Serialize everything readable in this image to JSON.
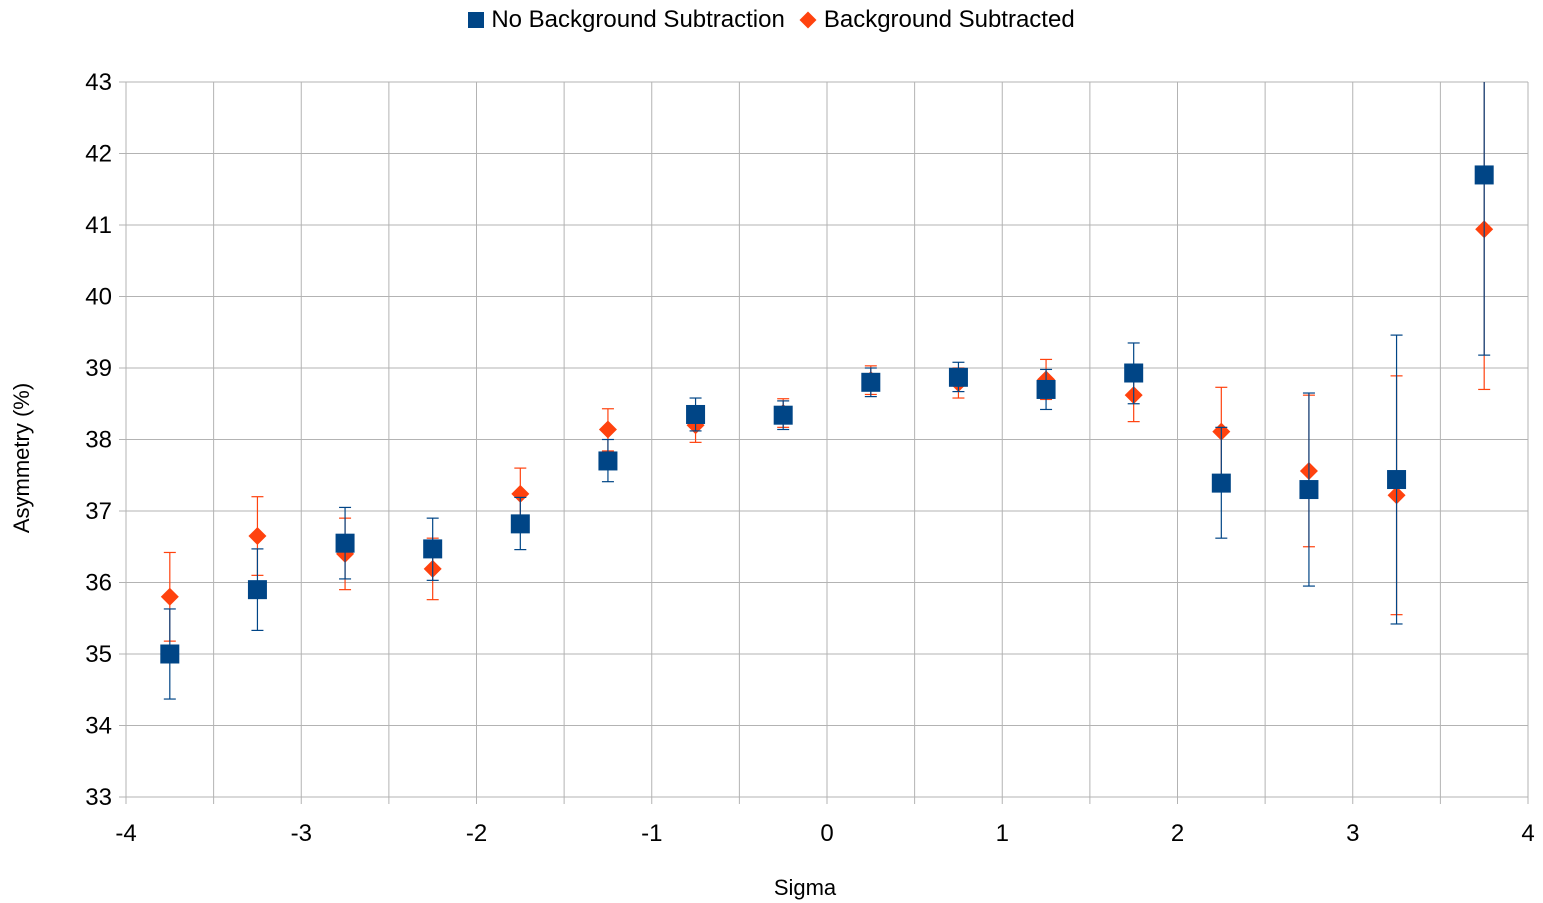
{
  "chart_data": {
    "type": "scatter",
    "title": "",
    "xlabel": "Sigma",
    "ylabel": "Asymmetry (%)",
    "xlim": [
      -4,
      4
    ],
    "ylim": [
      33,
      43
    ],
    "x_major_ticks": [
      -4,
      -3,
      -2,
      -1,
      0,
      1,
      2,
      3,
      4
    ],
    "x_grid_step": 0.5,
    "y_ticks": [
      33,
      34,
      35,
      36,
      37,
      38,
      39,
      40,
      41,
      42,
      43
    ],
    "grid": true,
    "legend_position": "top",
    "series": [
      {
        "name": "No Background Subtraction",
        "marker": "square",
        "color": "#004586",
        "points": [
          {
            "x": -3.75,
            "y": 35.0,
            "lo": 34.37,
            "hi": 35.63
          },
          {
            "x": -3.25,
            "y": 35.9,
            "lo": 35.33,
            "hi": 36.47
          },
          {
            "x": -2.75,
            "y": 36.55,
            "lo": 36.05,
            "hi": 37.05
          },
          {
            "x": -2.25,
            "y": 36.47,
            "lo": 36.03,
            "hi": 36.9
          },
          {
            "x": -1.75,
            "y": 36.82,
            "lo": 36.46,
            "hi": 37.19
          },
          {
            "x": -1.25,
            "y": 37.7,
            "lo": 37.41,
            "hi": 38.0
          },
          {
            "x": -0.75,
            "y": 38.35,
            "lo": 38.12,
            "hi": 38.58
          },
          {
            "x": -0.25,
            "y": 38.34,
            "lo": 38.14,
            "hi": 38.54
          },
          {
            "x": 0.25,
            "y": 38.8,
            "lo": 38.6,
            "hi": 39.0
          },
          {
            "x": 0.75,
            "y": 38.87,
            "lo": 38.67,
            "hi": 39.08
          },
          {
            "x": 1.25,
            "y": 38.7,
            "lo": 38.42,
            "hi": 38.98
          },
          {
            "x": 1.75,
            "y": 38.93,
            "lo": 38.5,
            "hi": 39.35
          },
          {
            "x": 2.25,
            "y": 37.39,
            "lo": 36.62,
            "hi": 38.17
          },
          {
            "x": 2.75,
            "y": 37.3,
            "lo": 35.95,
            "hi": 38.65
          },
          {
            "x": 3.25,
            "y": 37.44,
            "lo": 35.42,
            "hi": 39.46
          },
          {
            "x": 3.75,
            "y": 41.7,
            "lo": 39.18,
            "hi": 44.2
          }
        ]
      },
      {
        "name": "Background Subtracted",
        "marker": "diamond",
        "color": "#ff420e",
        "points": [
          {
            "x": -3.75,
            "y": 35.8,
            "lo": 35.18,
            "hi": 36.42
          },
          {
            "x": -3.25,
            "y": 36.65,
            "lo": 36.1,
            "hi": 37.2
          },
          {
            "x": -2.75,
            "y": 36.4,
            "lo": 35.9,
            "hi": 36.9
          },
          {
            "x": -2.25,
            "y": 36.19,
            "lo": 35.76,
            "hi": 36.62
          },
          {
            "x": -1.75,
            "y": 37.24,
            "lo": 36.88,
            "hi": 37.6
          },
          {
            "x": -1.25,
            "y": 38.14,
            "lo": 37.84,
            "hi": 38.43
          },
          {
            "x": -0.75,
            "y": 38.2,
            "lo": 37.96,
            "hi": 38.44
          },
          {
            "x": -0.25,
            "y": 38.37,
            "lo": 38.17,
            "hi": 38.57
          },
          {
            "x": 0.25,
            "y": 38.83,
            "lo": 38.63,
            "hi": 39.03
          },
          {
            "x": 0.75,
            "y": 38.79,
            "lo": 38.58,
            "hi": 39.0
          },
          {
            "x": 1.25,
            "y": 38.84,
            "lo": 38.56,
            "hi": 39.12
          },
          {
            "x": 1.75,
            "y": 38.62,
            "lo": 38.25,
            "hi": 39.0
          },
          {
            "x": 2.25,
            "y": 38.11,
            "lo": 37.5,
            "hi": 38.73
          },
          {
            "x": 2.75,
            "y": 37.56,
            "lo": 36.5,
            "hi": 38.62
          },
          {
            "x": 3.25,
            "y": 37.22,
            "lo": 35.55,
            "hi": 38.89
          },
          {
            "x": 3.75,
            "y": 40.94,
            "lo": 38.7,
            "hi": 43.2
          }
        ]
      }
    ]
  }
}
